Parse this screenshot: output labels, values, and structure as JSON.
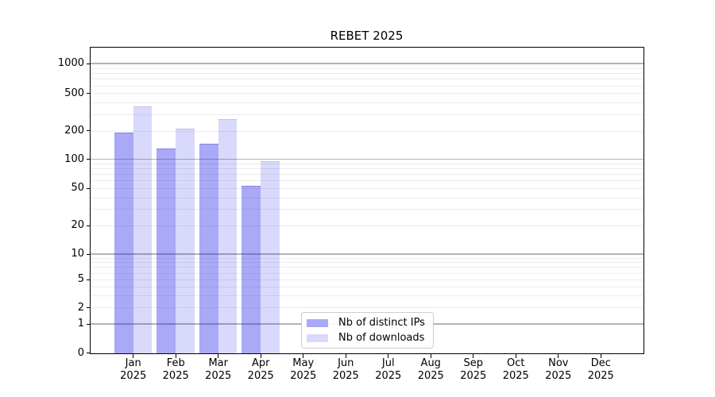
{
  "title": "REBET 2025",
  "chart_data": {
    "type": "bar",
    "title": "REBET 2025",
    "categories": [
      "Jan\n2025",
      "Feb\n2025",
      "Mar\n2025",
      "Apr\n2025",
      "May\n2025",
      "Jun\n2025",
      "Jul\n2025",
      "Aug\n2025",
      "Sep\n2025",
      "Oct\n2025",
      "Nov\n2025",
      "Dec\n2025"
    ],
    "series": [
      {
        "name": "Nb of distinct IPs",
        "color": "rgba(30,30,235,0.38)",
        "edge_color": "rgba(47,47,180,0.30)",
        "swatch_hex": "#a9a9f7",
        "values": [
          190,
          130,
          145,
          53,
          0,
          0,
          0,
          0,
          0,
          0,
          0,
          0
        ]
      },
      {
        "name": "Nb of downloads",
        "color": "rgba(30,30,235,0.17)",
        "edge_color": "rgba(47,47,180,0.14)",
        "swatch_hex": "#d9d9fb",
        "values": [
          360,
          210,
          267,
          96,
          0,
          0,
          0,
          0,
          0,
          0,
          0,
          0
        ]
      }
    ],
    "xlabel": "",
    "ylabel": "",
    "yscale": "symlog",
    "yticks": [
      0,
      1,
      2,
      5,
      10,
      20,
      50,
      100,
      200,
      500,
      1000
    ],
    "ylim": [
      0,
      1464
    ],
    "grid": "horizontal major+minor (log decades darker)",
    "legend_position": "lower center"
  },
  "colors": {
    "grid_minor": "#ececec",
    "grid_major": "#b3b3b3",
    "spine": "#000000",
    "legend_border": "#cccccc",
    "text": "#000000",
    "background": "#ffffff"
  }
}
